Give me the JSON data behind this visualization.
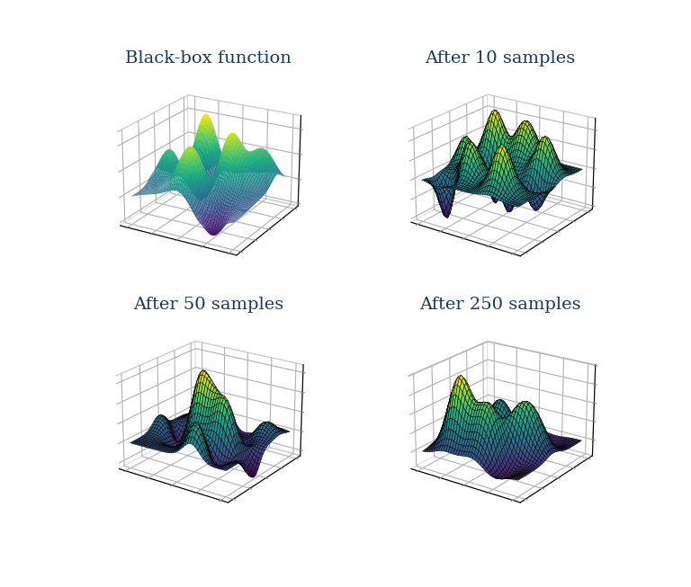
{
  "titles": [
    "Black-box function",
    "After 10 samples",
    "After 50 samples",
    "After 250 samples"
  ],
  "title_fontsize": 14,
  "title_color": "#1a3a5c",
  "background_color": "#ffffff",
  "colormap": "viridis",
  "elev_list": [
    22,
    22,
    22,
    22
  ],
  "azim_list": [
    -60,
    -55,
    -55,
    -55
  ],
  "seed": 42
}
